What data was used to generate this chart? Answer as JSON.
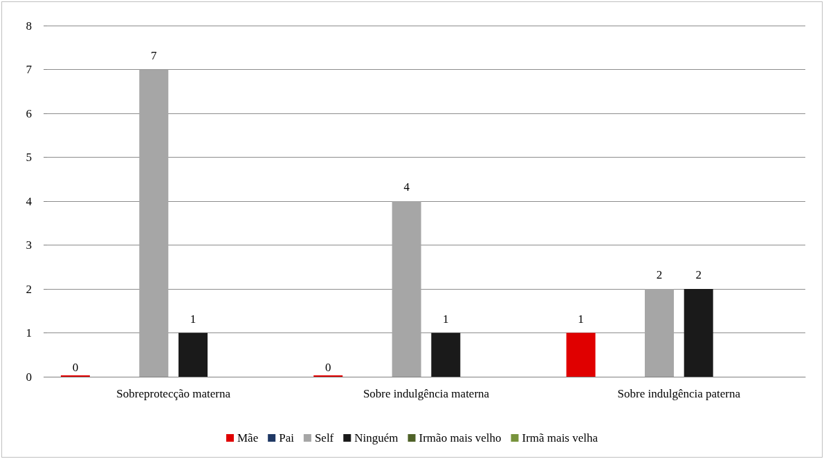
{
  "chart_data": {
    "type": "bar",
    "categories": [
      "Sobreprotecção materna",
      "Sobre indulgência materna",
      "Sobre indulgência paterna"
    ],
    "series": [
      {
        "name": "Mãe",
        "color": "#e00000",
        "values": [
          0,
          0,
          1
        ],
        "value_labels": [
          "0",
          "0",
          "1"
        ]
      },
      {
        "name": "Pai",
        "color": "#1f3864",
        "values": [
          null,
          null,
          null
        ]
      },
      {
        "name": "Self",
        "color": "#a6a6a6",
        "values": [
          7,
          4,
          2
        ],
        "value_labels": [
          "7",
          "4",
          "2"
        ]
      },
      {
        "name": "Ninguém",
        "color": "#1a1a1a",
        "values": [
          1,
          1,
          2
        ],
        "value_labels": [
          "1",
          "1",
          "2"
        ]
      },
      {
        "name": "Irmão mais velho",
        "color": "#4f6228",
        "values": [
          null,
          null,
          null
        ]
      },
      {
        "name": "Irmã mais velha",
        "color": "#77933c",
        "values": [
          null,
          null,
          null
        ]
      }
    ],
    "ylim": [
      0,
      8
    ],
    "yticks": [
      0,
      1,
      2,
      3,
      4,
      5,
      6,
      7,
      8
    ],
    "grid": "y",
    "legend": "bottom"
  }
}
